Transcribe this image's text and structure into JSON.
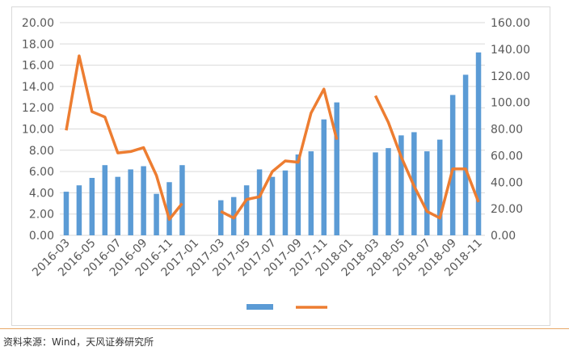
{
  "chart_data": {
    "type": "bar",
    "categories": [
      "2016-03",
      "2016-04",
      "2016-05",
      "2016-06",
      "2016-07",
      "2016-08",
      "2016-09",
      "2016-10",
      "2016-11",
      "2016-12",
      "2017-01",
      "2017-02",
      "2017-03",
      "2017-04",
      "2017-05",
      "2017-06",
      "2017-07",
      "2017-08",
      "2017-09",
      "2017-10",
      "2017-11",
      "2017-12",
      "2018-01",
      "2018-02",
      "2018-03",
      "2018-04",
      "2018-05",
      "2018-06",
      "2018-07",
      "2018-08",
      "2018-09",
      "2018-10",
      "2018-11"
    ],
    "x_tick_labels": [
      "2016-03",
      "2016-05",
      "2016-07",
      "2016-09",
      "2016-11",
      "2017-01",
      "2017-03",
      "2017-05",
      "2017-07",
      "2017-09",
      "2017-11",
      "2018-01",
      "2018-03",
      "2018-05",
      "2018-07",
      "2018-09",
      "2018-11"
    ],
    "series": [
      {
        "type": "bar",
        "axis": "left",
        "values": [
          4.1,
          4.7,
          5.4,
          6.6,
          5.5,
          6.2,
          6.5,
          3.9,
          5.0,
          6.6,
          null,
          null,
          3.3,
          3.6,
          4.7,
          6.2,
          5.5,
          6.1,
          7.6,
          7.9,
          10.9,
          12.5,
          null,
          null,
          7.8,
          8.2,
          9.4,
          9.7,
          7.9,
          9.0,
          13.2,
          15.1,
          17.2
        ]
      },
      {
        "type": "line",
        "axis": "right",
        "values": [
          79,
          135,
          93,
          89,
          62,
          63,
          66,
          45,
          12,
          24,
          null,
          null,
          18,
          13,
          27,
          29,
          48,
          56,
          55,
          92,
          110,
          72,
          null,
          null,
          105,
          85,
          59,
          37,
          18,
          13,
          50,
          50,
          25
        ]
      }
    ],
    "left_axis": {
      "min": 0,
      "max": 20,
      "step": 2,
      "ticks": [
        "0.00",
        "2.00",
        "4.00",
        "6.00",
        "8.00",
        "10.00",
        "12.00",
        "14.00",
        "16.00",
        "18.00",
        "20.00"
      ]
    },
    "right_axis": {
      "min": 0,
      "max": 160,
      "step": 20,
      "ticks": [
        "0.00",
        "20.00",
        "40.00",
        "60.00",
        "80.00",
        "100.00",
        "120.00",
        "140.00",
        "160.00"
      ]
    },
    "grid": true,
    "legend_placement": "bottom-center",
    "colors": {
      "bar": "#5b9bd5",
      "line": "#ed7d31",
      "grid": "#d9d9d9",
      "axis_text": "#595959"
    }
  },
  "footer": {
    "source": "资料来源：Wind，天风证券研究所"
  }
}
